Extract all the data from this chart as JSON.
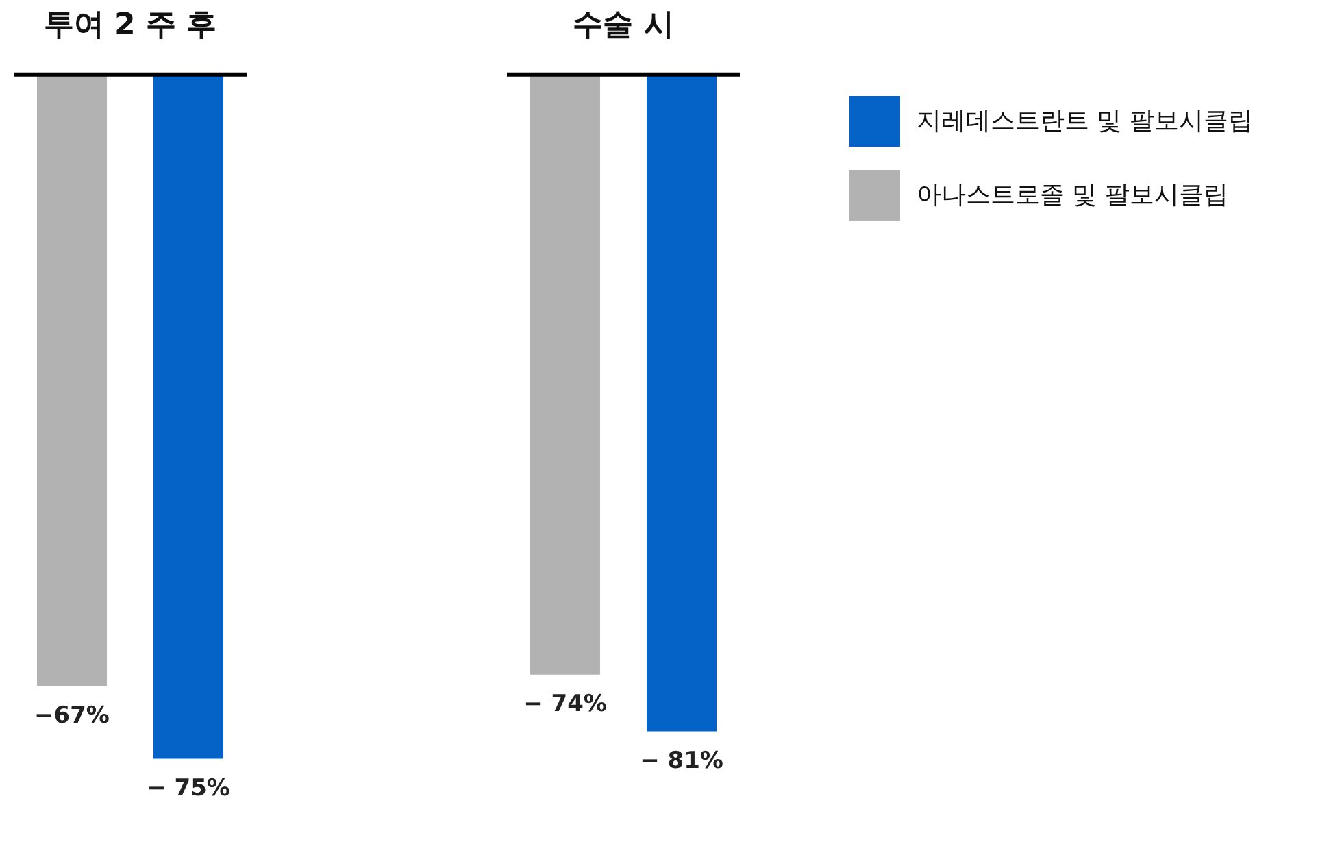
{
  "chart_data": [
    {
      "type": "bar",
      "title": "투여 2 주 후",
      "categories": [
        null
      ],
      "series": [
        {
          "color": "#b2b2b2",
          "values": [
            -67
          ],
          "value_labels": [
            "−67%"
          ]
        },
        {
          "color": "#0563c8",
          "values": [
            -75
          ],
          "value_labels": [
            "− 75%"
          ]
        }
      ],
      "tick_labels": false,
      "legend": false
    },
    {
      "type": "bar",
      "title": "수술 시",
      "categories": [
        null
      ],
      "series": [
        {
          "name": "아나스트로졸 및 팔보시클립",
          "color": "#b2b2b2",
          "values": [
            -74
          ],
          "value_labels": [
            "− 74%"
          ]
        },
        {
          "name": "지레데스트란트 및 팔보시클립",
          "color": "#0563c8",
          "values": [
            -81
          ],
          "value_labels": [
            "− 81%"
          ]
        }
      ],
      "tick_labels": false,
      "legend": "right"
    }
  ]
}
